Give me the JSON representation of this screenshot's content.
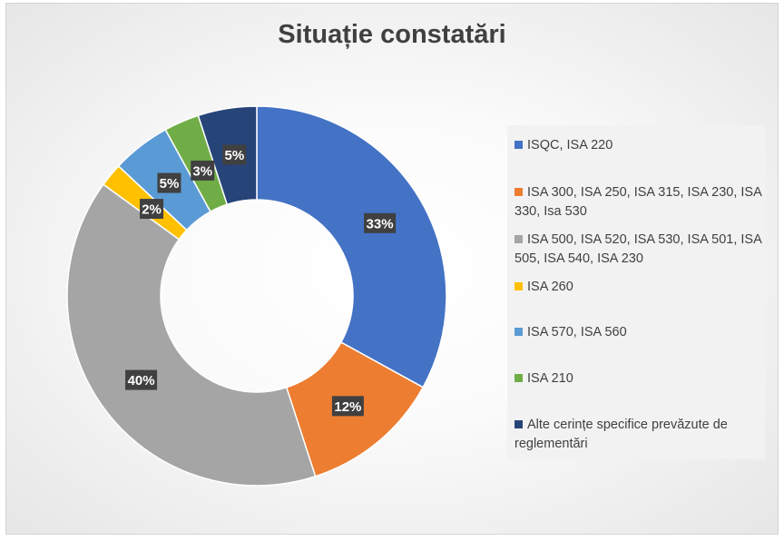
{
  "chart_data": {
    "type": "pie",
    "subtype": "doughnut",
    "title": "Situație constatări",
    "categories": [
      "ISQC, ISA 220",
      "ISA 300, ISA 250, ISA 315, ISA 230, ISA 330, Isa 530",
      "ISA 500, ISA 520, ISA 530, ISA 501, ISA 505, ISA 540, ISA 230",
      "ISA 260",
      "ISA 570, ISA 560",
      "ISA 210",
      "Alte cerințe specifice prevăzute de reglementări"
    ],
    "values": [
      33,
      12,
      40,
      2,
      5,
      3,
      5
    ],
    "data_labels": [
      "33%",
      "12%",
      "40%",
      "2%",
      "5%",
      "3%",
      "5%"
    ],
    "colors": [
      "#4472C4",
      "#ED7D31",
      "#A5A5A5",
      "#FFC000",
      "#5B9BD5",
      "#70AD47",
      "#264478"
    ],
    "legend_position": "right"
  }
}
